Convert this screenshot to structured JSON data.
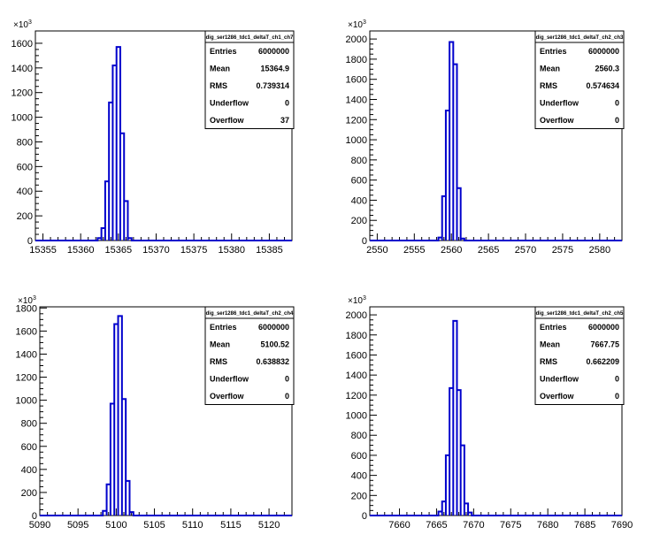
{
  "chart_data": [
    {
      "type": "bar",
      "title": "",
      "xlabel": "",
      "ylabel": "",
      "y_multiplier_label": "×10",
      "y_multiplier_exp": "3",
      "xlim": [
        15354,
        15388
      ],
      "ylim": [
        0,
        1700
      ],
      "x_ticks": [
        15355,
        15360,
        15365,
        15370,
        15375,
        15380,
        15385
      ],
      "y_ticks": [
        0,
        200,
        400,
        600,
        800,
        1000,
        1200,
        1400,
        1600
      ],
      "bin_width": 0.5,
      "bins": [
        {
          "x": 15362.5,
          "y": 20
        },
        {
          "x": 15363.0,
          "y": 100
        },
        {
          "x": 15363.5,
          "y": 480
        },
        {
          "x": 15364.0,
          "y": 1120
        },
        {
          "x": 15364.5,
          "y": 1420
        },
        {
          "x": 15365.0,
          "y": 1570
        },
        {
          "x": 15365.5,
          "y": 870
        },
        {
          "x": 15366.0,
          "y": 320
        },
        {
          "x": 15366.5,
          "y": 20
        }
      ],
      "line_color": "#0000cc",
      "stats": {
        "name": "dig_ser1286_tdc1_deltaT_ch1_ch7",
        "rows": [
          {
            "label": "Entries",
            "value": "6000000"
          },
          {
            "label": "Mean",
            "value": "15364.9"
          },
          {
            "label": "RMS",
            "value": "0.739314"
          },
          {
            "label": "Underflow",
            "value": "0"
          },
          {
            "label": "Overflow",
            "value": "37"
          }
        ]
      }
    },
    {
      "type": "bar",
      "title": "",
      "xlabel": "",
      "ylabel": "",
      "y_multiplier_label": "×10",
      "y_multiplier_exp": "3",
      "xlim": [
        2549,
        2583
      ],
      "ylim": [
        0,
        2080
      ],
      "x_ticks": [
        2550,
        2555,
        2560,
        2565,
        2570,
        2575,
        2580
      ],
      "y_ticks": [
        0,
        200,
        400,
        600,
        800,
        1000,
        1200,
        1400,
        1600,
        1800,
        2000
      ],
      "bin_width": 0.5,
      "bins": [
        {
          "x": 2558.5,
          "y": 30
        },
        {
          "x": 2559.0,
          "y": 440
        },
        {
          "x": 2559.5,
          "y": 1290
        },
        {
          "x": 2560.0,
          "y": 1970
        },
        {
          "x": 2560.5,
          "y": 1750
        },
        {
          "x": 2561.0,
          "y": 520
        },
        {
          "x": 2561.5,
          "y": 20
        }
      ],
      "line_color": "#0000cc",
      "stats": {
        "name": "dig_ser1286_tdc1_deltaT_ch2_ch3",
        "rows": [
          {
            "label": "Entries",
            "value": "6000000"
          },
          {
            "label": "Mean",
            "value": "2560.3"
          },
          {
            "label": "RMS",
            "value": "0.574634"
          },
          {
            "label": "Underflow",
            "value": "0"
          },
          {
            "label": "Overflow",
            "value": "0"
          }
        ]
      }
    },
    {
      "type": "bar",
      "title": "",
      "xlabel": "",
      "ylabel": "",
      "y_multiplier_label": "×10",
      "y_multiplier_exp": "3",
      "xlim": [
        5090,
        5123
      ],
      "ylim": [
        0,
        1810
      ],
      "x_ticks": [
        5090,
        5095,
        5100,
        5105,
        5110,
        5115,
        5120
      ],
      "y_ticks": [
        0,
        200,
        400,
        600,
        800,
        1000,
        1200,
        1400,
        1600,
        1800
      ],
      "bin_width": 0.5,
      "bins": [
        {
          "x": 5098.5,
          "y": 40
        },
        {
          "x": 5099.0,
          "y": 270
        },
        {
          "x": 5099.5,
          "y": 970
        },
        {
          "x": 5100.0,
          "y": 1660
        },
        {
          "x": 5100.5,
          "y": 1730
        },
        {
          "x": 5101.0,
          "y": 1010
        },
        {
          "x": 5101.5,
          "y": 300
        },
        {
          "x": 5102.0,
          "y": 30
        }
      ],
      "line_color": "#0000cc",
      "stats": {
        "name": "dig_ser1286_tdc1_deltaT_ch2_ch4",
        "rows": [
          {
            "label": "Entries",
            "value": "6000000"
          },
          {
            "label": "Mean",
            "value": "5100.52"
          },
          {
            "label": "RMS",
            "value": "0.638832"
          },
          {
            "label": "Underflow",
            "value": "0"
          },
          {
            "label": "Overflow",
            "value": "0"
          }
        ]
      }
    },
    {
      "type": "bar",
      "title": "",
      "xlabel": "",
      "ylabel": "",
      "y_multiplier_label": "×10",
      "y_multiplier_exp": "3",
      "xlim": [
        7656,
        7690
      ],
      "ylim": [
        0,
        2080
      ],
      "x_ticks": [
        7660,
        7665,
        7670,
        7675,
        7680,
        7685,
        7690
      ],
      "y_ticks": [
        0,
        200,
        400,
        600,
        800,
        1000,
        1200,
        1400,
        1600,
        1800,
        2000
      ],
      "bin_width": 0.5,
      "bins": [
        {
          "x": 7665.5,
          "y": 40
        },
        {
          "x": 7666.0,
          "y": 140
        },
        {
          "x": 7666.5,
          "y": 600
        },
        {
          "x": 7667.0,
          "y": 1270
        },
        {
          "x": 7667.5,
          "y": 1940
        },
        {
          "x": 7668.0,
          "y": 1250
        },
        {
          "x": 7668.5,
          "y": 700
        },
        {
          "x": 7669.0,
          "y": 120
        },
        {
          "x": 7669.5,
          "y": 30
        }
      ],
      "line_color": "#0000cc",
      "stats": {
        "name": "dig_ser1286_tdc1_deltaT_ch2_ch5",
        "rows": [
          {
            "label": "Entries",
            "value": "6000000"
          },
          {
            "label": "Mean",
            "value": "7667.75"
          },
          {
            "label": "RMS",
            "value": "0.662209"
          },
          {
            "label": "Underflow",
            "value": "0"
          },
          {
            "label": "Overflow",
            "value": "0"
          }
        ]
      }
    }
  ]
}
